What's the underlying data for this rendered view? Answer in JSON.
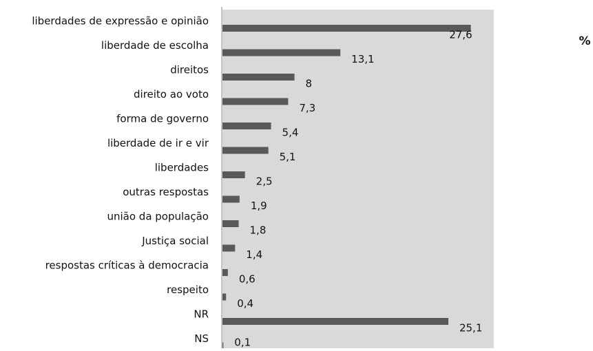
{
  "chart_data": {
    "type": "bar",
    "orientation": "horizontal",
    "unit_label": "%",
    "categories": [
      "liberdades de expressão e opinião",
      "liberdade de escolha",
      "direitos",
      "direito ao voto",
      "forma de governo",
      "liberdade de ir e vir",
      "liberdades",
      "outras respostas",
      "união da população",
      "Justiça social",
      "respostas críticas à democracia",
      "respeito",
      "NR",
      "NS"
    ],
    "values": [
      27.6,
      13.1,
      8,
      7.3,
      5.4,
      5.1,
      2.5,
      1.9,
      1.8,
      1.4,
      0.6,
      0.4,
      25.1,
      0.1
    ],
    "value_labels": [
      "27,6",
      "13,1",
      "8",
      "7,3",
      "5,4",
      "5,1",
      "2,5",
      "1,9",
      "1,8",
      "1,4",
      "0,6",
      "0,4",
      "25,1",
      "0,1"
    ],
    "color": "#595959",
    "background": "#d9d9d9",
    "xlim": [
      0,
      30
    ]
  }
}
